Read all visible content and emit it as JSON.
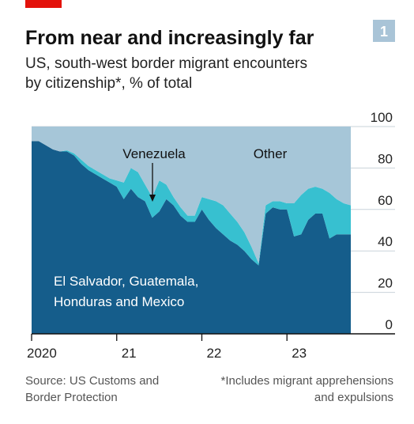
{
  "chart_data": {
    "type": "stacked_area",
    "title": "From near and increasingly far",
    "badge": "1",
    "subtitle": [
      "US, south-west border migrant encounters",
      "by citizenship*, % of total"
    ],
    "source": [
      "Source: US Customs and",
      "Border Protection"
    ],
    "note": [
      "*Includes migrant apprehensions",
      "and expulsions"
    ],
    "x": [
      2020,
      2020.083,
      2020.167,
      2020.25,
      2020.333,
      2020.417,
      2020.5,
      2020.583,
      2020.667,
      2020.75,
      2020.833,
      2020.917,
      2021,
      2021.083,
      2021.167,
      2021.25,
      2021.333,
      2021.417,
      2021.5,
      2021.583,
      2021.667,
      2021.75,
      2021.833,
      2021.917,
      2022,
      2022.083,
      2022.167,
      2022.25,
      2022.333,
      2022.417,
      2022.5,
      2022.583,
      2022.667,
      2022.75,
      2022.833,
      2022.917,
      2023,
      2023.083,
      2023.167,
      2023.25,
      2023.333,
      2023.417,
      2023.5,
      2023.583,
      2023.667,
      2023.75
    ],
    "series": [
      {
        "name": "El Salvador, Guatemala, Honduras and Mexico",
        "color": "#155d8b",
        "values": [
          93,
          93,
          91,
          89,
          88,
          88,
          86,
          82,
          79,
          77,
          75,
          73,
          71,
          65,
          70,
          66,
          64,
          56,
          59,
          65,
          62,
          57,
          54,
          54,
          60,
          55,
          51,
          48,
          45,
          43,
          40,
          36,
          33,
          58,
          61,
          60,
          60,
          47,
          48,
          55,
          58,
          58,
          46,
          48,
          48,
          48
        ]
      },
      {
        "name": "Venezuela",
        "color": "#37c0d0",
        "values": [
          0,
          0,
          0,
          0,
          0,
          0.5,
          1,
          2,
          2,
          2,
          2,
          2,
          3,
          8,
          10,
          12,
          8,
          10,
          15,
          7,
          4,
          4,
          3,
          3,
          6,
          10,
          13,
          14,
          13,
          11,
          9,
          6,
          1,
          4,
          3,
          4,
          3,
          16,
          19,
          15,
          13,
          12,
          22,
          17,
          15,
          14
        ]
      },
      {
        "name": "Other",
        "color": "#a6c6d8",
        "values": [
          7,
          7,
          9,
          11,
          12,
          11.5,
          13,
          16,
          19,
          21,
          23,
          25,
          26,
          27,
          20,
          22,
          28,
          34,
          26,
          28,
          34,
          39,
          43,
          43,
          34,
          35,
          36,
          38,
          42,
          46,
          51,
          58,
          66,
          38,
          36,
          36,
          37,
          37,
          33,
          30,
          29,
          30,
          32,
          35,
          37,
          38
        ]
      }
    ],
    "xlim": [
      2020,
      2023.75
    ],
    "xticks": [
      {
        "value": 2020,
        "label": "2020"
      },
      {
        "value": 2021,
        "label": "21"
      },
      {
        "value": 2022,
        "label": "22"
      },
      {
        "value": 2023,
        "label": "23"
      }
    ],
    "ylim": [
      0,
      100
    ],
    "yticks": [
      0,
      20,
      40,
      60,
      80,
      100
    ],
    "grid": true
  }
}
